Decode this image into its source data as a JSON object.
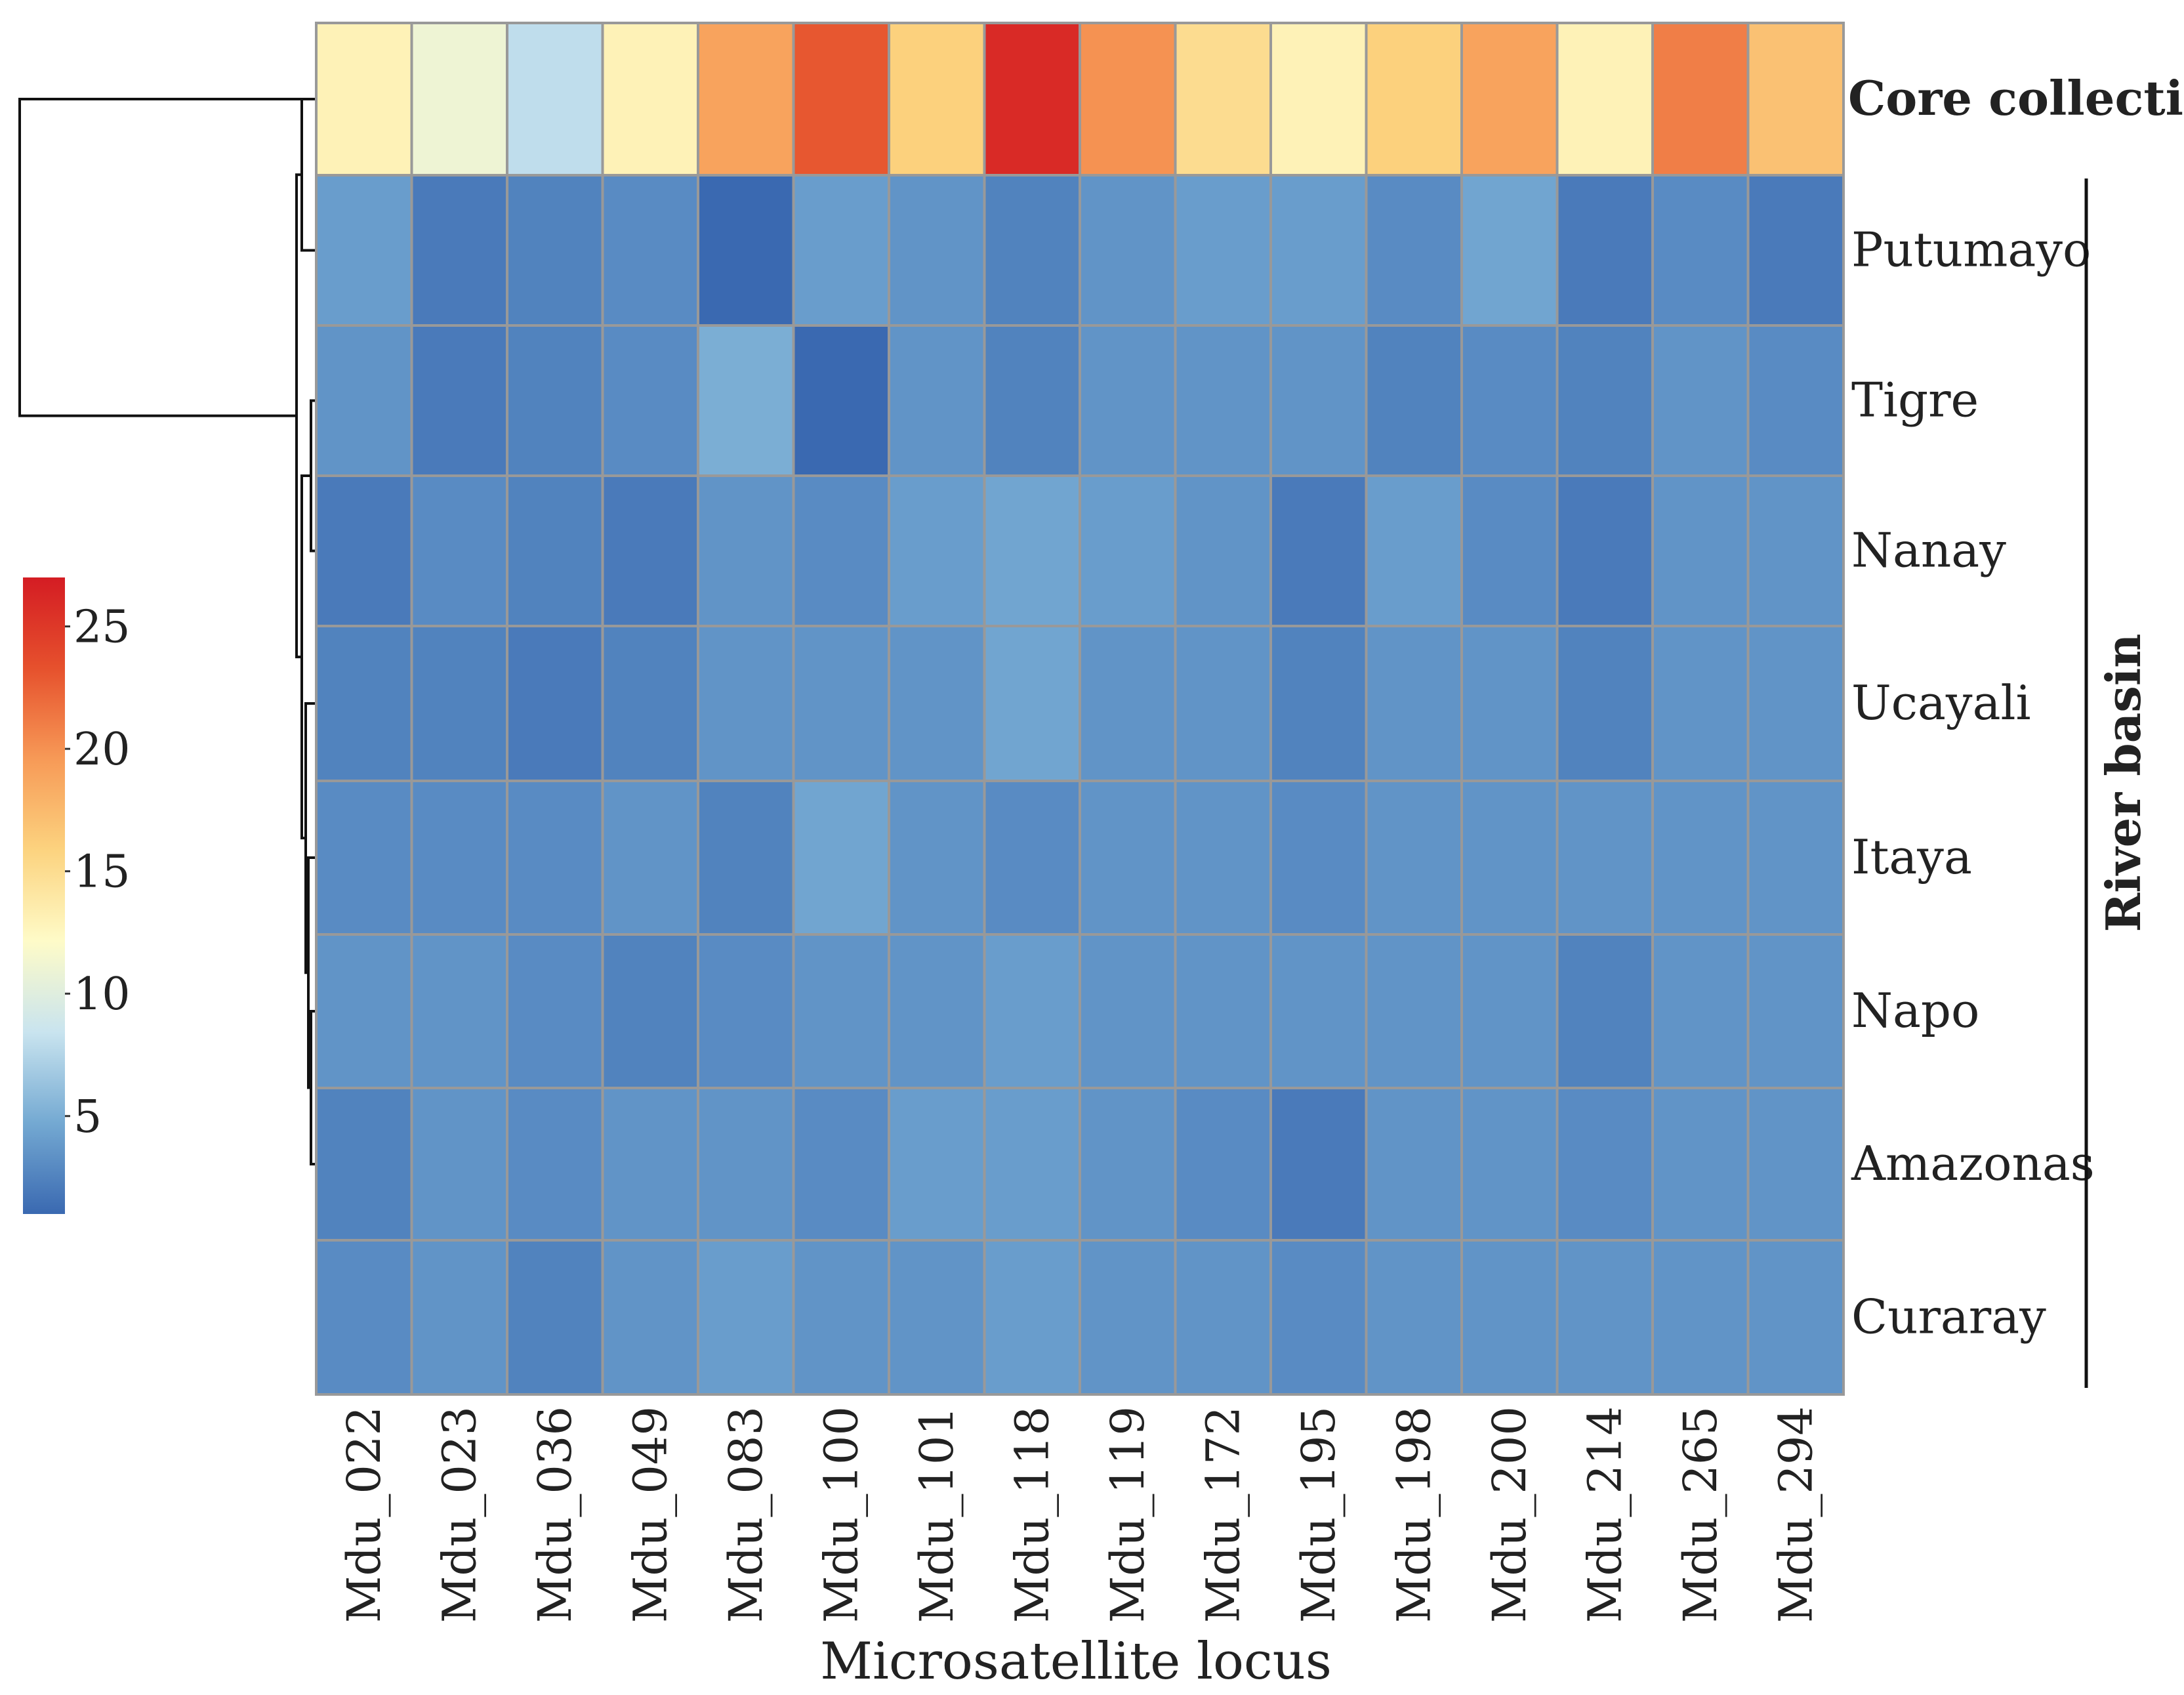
{
  "chart_data": {
    "type": "heatmap",
    "title": "",
    "xlabel": "Microsatellite locus",
    "group_label": "River basin",
    "columns": [
      "Mdu_022",
      "Mdu_023",
      "Mdu_036",
      "Mdu_049",
      "Mdu_083",
      "Mdu_100",
      "Mdu_101",
      "Mdu_118",
      "Mdu_119",
      "Mdu_172",
      "Mdu_195",
      "Mdu_198",
      "Mdu_200",
      "Mdu_214",
      "Mdu_265",
      "Mdu_294"
    ],
    "rows": [
      {
        "name": "Core collection",
        "bold": true,
        "values": [
          13,
          11,
          8,
          13,
          19,
          23,
          16,
          26,
          20,
          15,
          13,
          16,
          19,
          13,
          21,
          17
        ]
      },
      {
        "name": "Putumayo",
        "bold": false,
        "values": [
          4,
          2,
          2.5,
          3,
          1,
          4,
          3.5,
          2.5,
          3.5,
          4,
          4,
          3,
          4.5,
          2,
          3,
          2
        ]
      },
      {
        "name": "Tigre",
        "bold": false,
        "values": [
          3.5,
          2,
          2.5,
          3,
          5,
          1,
          3.5,
          2.5,
          3.5,
          3.5,
          3.5,
          2.5,
          3,
          2.5,
          3.5,
          3
        ]
      },
      {
        "name": "Nanay",
        "bold": false,
        "values": [
          2,
          3,
          2.5,
          2,
          3.5,
          3,
          4,
          4.5,
          4,
          3.5,
          2,
          4,
          3,
          2,
          3.5,
          3.5
        ]
      },
      {
        "name": "Ucayali",
        "bold": false,
        "values": [
          2.5,
          2.5,
          2,
          2.5,
          3.5,
          3.5,
          3.5,
          4.5,
          3.5,
          3.5,
          2.5,
          3.5,
          3.5,
          2.5,
          3.5,
          3.5
        ]
      },
      {
        "name": "Itaya",
        "bold": false,
        "values": [
          3,
          3,
          3,
          3.5,
          2.5,
          4.5,
          3.5,
          3,
          3.5,
          3.5,
          3,
          3.5,
          3.5,
          3.5,
          3.5,
          3.5
        ]
      },
      {
        "name": "Napo",
        "bold": false,
        "values": [
          3.5,
          3.5,
          3,
          2.5,
          3,
          3.5,
          3.5,
          4,
          3.5,
          3.5,
          3.5,
          3.5,
          3.5,
          2.5,
          3.5,
          3.5
        ]
      },
      {
        "name": "Amazonas",
        "bold": false,
        "values": [
          2.5,
          3.5,
          3,
          3.5,
          3.5,
          3,
          4,
          4,
          3.5,
          3,
          2,
          3.5,
          3.5,
          3,
          3.5,
          3.5
        ]
      },
      {
        "name": "Curaray",
        "bold": false,
        "values": [
          3,
          3.5,
          2.5,
          3.5,
          4,
          3.5,
          3.5,
          4,
          3.5,
          3.5,
          3,
          3.5,
          3.5,
          3.5,
          3.5,
          3.5
        ]
      }
    ],
    "colorbar": {
      "min": 1,
      "max": 27,
      "ticks": [
        5,
        10,
        15,
        20,
        25
      ],
      "colors": [
        "#3a69b1",
        "#74a9d2",
        "#c9e4ef",
        "#fefbc8",
        "#fcd37f",
        "#f79a57",
        "#e6512d",
        "#d41c23"
      ]
    },
    "dendrogram": "rows"
  }
}
